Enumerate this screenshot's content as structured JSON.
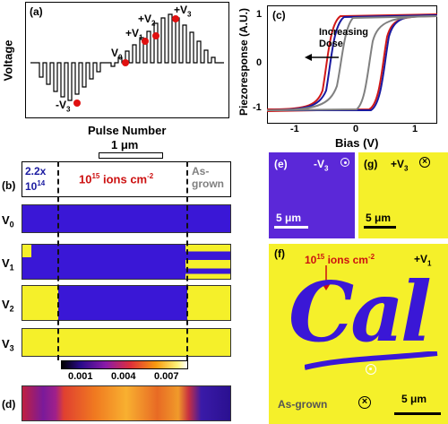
{
  "panel_a": {
    "tag": "(a)",
    "ylabel": "Voltage",
    "xlabel": "Pulse Number",
    "points": [
      "-V",
      "V",
      "+V",
      "+V",
      "+V"
    ],
    "point_subs": [
      "3",
      "0",
      "1",
      "2",
      "3"
    ]
  },
  "panel_b": {
    "tag": "(b)",
    "scalebar": "1 μm",
    "header_left": "2.2x 10",
    "header_left_sup": "14",
    "header_mid": "10",
    "header_mid_sup": "15",
    "header_mid_rest": " ions  cm",
    "header_mid_exp": "-2",
    "header_right": "As-grown",
    "rows": [
      {
        "label": "V",
        "sub": "0"
      },
      {
        "label": "V",
        "sub": "1"
      },
      {
        "label": "V",
        "sub": "2"
      },
      {
        "label": "V",
        "sub": "3"
      }
    ]
  },
  "panel_c": {
    "tag": "(c)",
    "ylabel": "Piezoresponse (A.U.)",
    "xlabel": "Bias (V)",
    "annotation": "Increasing Dose",
    "xticks": [
      "-1",
      "0",
      "1"
    ],
    "yticks": [
      "1",
      "0",
      "-1"
    ]
  },
  "panel_d": {
    "tag": "(d)",
    "colorbar_ticks": [
      "0.001",
      "0.004",
      "0.007"
    ]
  },
  "panel_e": {
    "tag": "(e)",
    "label": "-V",
    "sub": "3",
    "scalebar": "5 μm"
  },
  "panel_g": {
    "tag": "(g)",
    "label": "+V",
    "sub": "3",
    "scalebar": "5 μm"
  },
  "panel_f": {
    "tag": "(f)",
    "dose": "10",
    "dose_sup": "15",
    "dose_rest": " ions cm",
    "dose_exp": "-2",
    "label": "+V",
    "sub": "1",
    "script": "Cal",
    "asgrown": "As-grown",
    "scalebar": "5 μm"
  },
  "colors": {
    "blue_domain": "#3a17d6",
    "yellow_domain": "#f5f02a",
    "red_dose": "#cc1010",
    "grey_asgrown": "#808080"
  }
}
